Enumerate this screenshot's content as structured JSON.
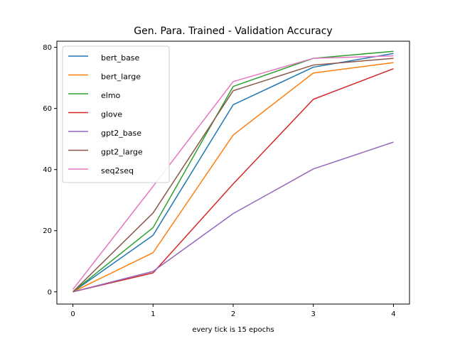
{
  "chart_data": {
    "type": "line",
    "title": "Gen. Para. Trained - Validation Accuracy",
    "xlabel": "every tick is 15 epochs",
    "ylabel": "",
    "x": [
      0,
      1,
      2,
      3,
      4
    ],
    "xticks": [
      "0",
      "1",
      "2",
      "3",
      "4"
    ],
    "yticks": [
      "0",
      "20",
      "40",
      "60",
      "80"
    ],
    "xlim": [
      -0.2,
      4.2
    ],
    "ylim": [
      -4,
      82
    ],
    "grid": false,
    "legend_position": "top-left",
    "series": [
      {
        "name": "bert_base",
        "color": "#1f77b4",
        "values": [
          0,
          18.5,
          61.2,
          73.5,
          78
        ]
      },
      {
        "name": "bert_large",
        "color": "#ff7f0e",
        "values": [
          0,
          12.8,
          51.3,
          71.6,
          75
        ]
      },
      {
        "name": "elmo",
        "color": "#2ca02c",
        "values": [
          0,
          21,
          67.2,
          76.4,
          78.7
        ]
      },
      {
        "name": "glove",
        "color": "#d62728",
        "values": [
          0,
          6.2,
          35.3,
          63,
          73
        ]
      },
      {
        "name": "gpt2_base",
        "color": "#9467bd",
        "values": [
          0,
          6.7,
          25.6,
          40.2,
          49
        ]
      },
      {
        "name": "gpt2_large",
        "color": "#8c564b",
        "values": [
          0,
          25.8,
          65.8,
          74.2,
          76.4
        ]
      },
      {
        "name": "seq2seq",
        "color": "#e377c2",
        "values": [
          0.8,
          34.5,
          68.8,
          76.4,
          77.2
        ]
      }
    ]
  }
}
